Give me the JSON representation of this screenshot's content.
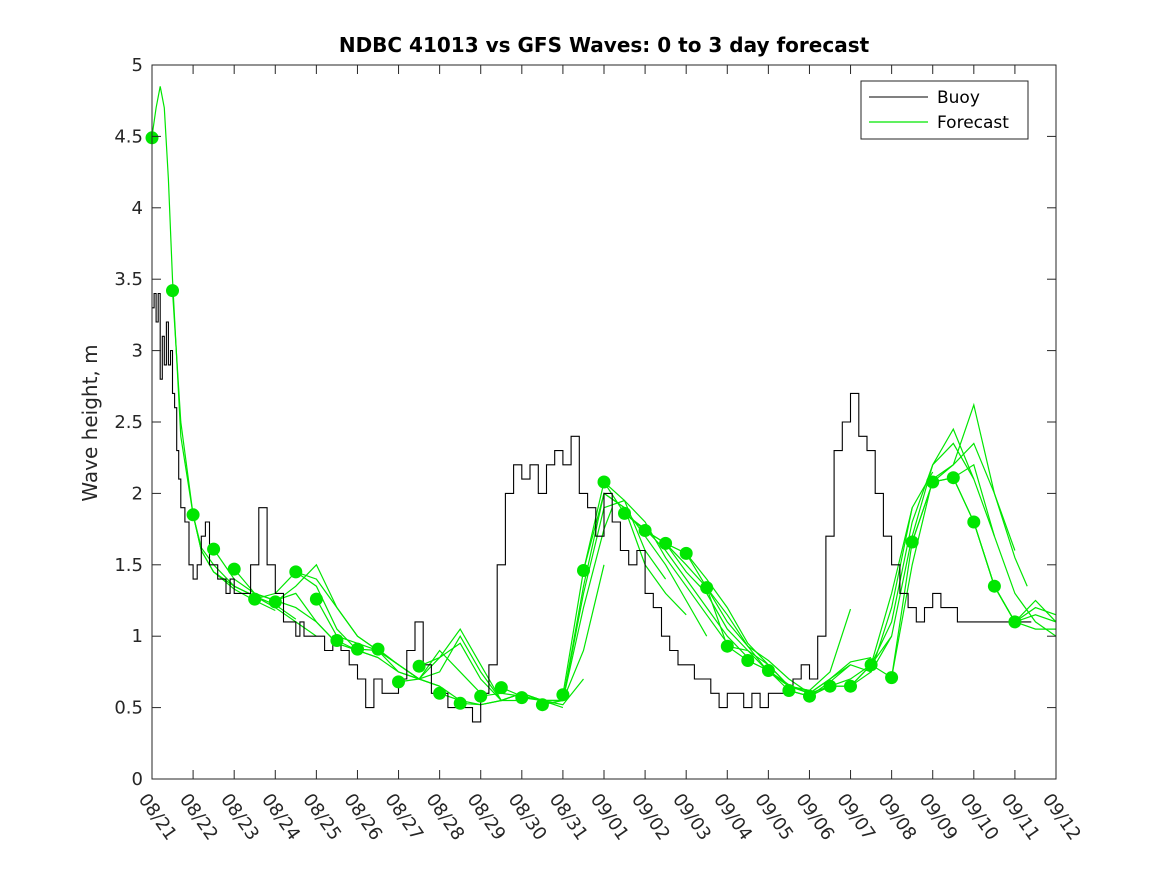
{
  "chart_data": {
    "type": "line",
    "title": "NDBC 41013 vs GFS Waves: 0 to 3 day forecast",
    "xlabel": "",
    "ylabel": "Wave height, m",
    "x_start_date": "08/21",
    "xlim": [
      0,
      22
    ],
    "ylim": [
      0,
      5
    ],
    "grid": false,
    "x_tick_labels": [
      "08/21",
      "08/22",
      "08/23",
      "08/24",
      "08/25",
      "08/26",
      "08/27",
      "08/28",
      "08/29",
      "08/30",
      "08/31",
      "09/01",
      "09/02",
      "09/03",
      "09/04",
      "09/05",
      "09/06",
      "09/07",
      "09/08",
      "09/09",
      "09/10",
      "09/11",
      "09/12"
    ],
    "y_ticks": [
      0,
      0.5,
      1,
      1.5,
      2,
      2.5,
      3,
      3.5,
      4,
      4.5,
      5
    ],
    "y_tick_labels": [
      "0",
      "0.5",
      "1",
      "1.5",
      "2",
      "2.5",
      "3",
      "3.5",
      "4",
      "4.5",
      "5"
    ],
    "legend": {
      "position": "top-right",
      "entries": [
        "Buoy",
        "Forecast"
      ]
    },
    "colors": {
      "buoy": "#000000",
      "forecast": "#00e600",
      "axes": "#262626"
    },
    "buoy": {
      "x": [
        0,
        0.05,
        0.1,
        0.15,
        0.2,
        0.25,
        0.3,
        0.35,
        0.4,
        0.45,
        0.5,
        0.55,
        0.6,
        0.65,
        0.7,
        0.8,
        0.9,
        1,
        1.1,
        1.2,
        1.3,
        1.4,
        1.5,
        1.6,
        1.7,
        1.8,
        1.9,
        2,
        2.2,
        2.4,
        2.6,
        2.8,
        3,
        3.2,
        3.4,
        3.5,
        3.6,
        3.7,
        3.8,
        3.9,
        4,
        4.2,
        4.4,
        4.6,
        4.8,
        5,
        5.2,
        5.4,
        5.6,
        5.8,
        6,
        6.2,
        6.4,
        6.6,
        6.8,
        7,
        7.2,
        7.4,
        7.6,
        7.8,
        8,
        8.2,
        8.4,
        8.6,
        8.8,
        9,
        9.2,
        9.4,
        9.6,
        9.8,
        10,
        10.2,
        10.4,
        10.6,
        10.8,
        11,
        11.2,
        11.4,
        11.6,
        11.8,
        12,
        12.2,
        12.4,
        12.6,
        12.8,
        13,
        13.2,
        13.4,
        13.6,
        13.8,
        14,
        14.2,
        14.4,
        14.6,
        14.8,
        15,
        15.2,
        15.4,
        15.6,
        15.8,
        16,
        16.2,
        16.4,
        16.6,
        16.8,
        17,
        17.2,
        17.4,
        17.6,
        17.8,
        18,
        18.2,
        18.4,
        18.6,
        18.8,
        19,
        19.2,
        19.4,
        19.6,
        19.8,
        20,
        20.2,
        20.4,
        20.6,
        20.8,
        21,
        21.2,
        21.4
      ],
      "values": [
        3.3,
        3.4,
        3.2,
        3.4,
        2.8,
        3.1,
        2.9,
        3.2,
        2.9,
        3.0,
        2.7,
        2.6,
        2.3,
        2.1,
        1.9,
        1.8,
        1.5,
        1.4,
        1.5,
        1.7,
        1.8,
        1.5,
        1.5,
        1.4,
        1.4,
        1.3,
        1.4,
        1.3,
        1.3,
        1.5,
        1.9,
        1.5,
        1.3,
        1.1,
        1.1,
        1.0,
        1.1,
        1.0,
        1.0,
        1.0,
        1.0,
        0.9,
        1.0,
        0.9,
        0.8,
        0.7,
        0.5,
        0.7,
        0.6,
        0.6,
        0.7,
        0.9,
        1.1,
        0.8,
        0.6,
        0.6,
        0.5,
        0.5,
        0.5,
        0.4,
        0.6,
        0.8,
        1.5,
        2.0,
        2.2,
        2.1,
        2.2,
        2.0,
        2.2,
        2.3,
        2.2,
        2.4,
        2.0,
        1.9,
        1.7,
        2.0,
        1.8,
        1.6,
        1.5,
        1.6,
        1.3,
        1.2,
        1.0,
        0.9,
        0.8,
        0.8,
        0.7,
        0.7,
        0.6,
        0.5,
        0.6,
        0.6,
        0.5,
        0.6,
        0.5,
        0.6,
        0.6,
        0.6,
        0.7,
        0.8,
        0.7,
        1.0,
        1.7,
        2.3,
        2.5,
        2.7,
        2.4,
        2.3,
        2.0,
        1.7,
        1.5,
        1.3,
        1.2,
        1.1,
        1.2,
        1.3,
        1.2,
        1.2,
        1.1,
        1.1,
        1.1,
        1.1,
        1.1,
        1.1,
        1.1,
        1.1,
        1.1,
        1.1
      ]
    },
    "forecast_runs": [
      {
        "x": [
          0,
          0.1,
          0.2,
          0.3,
          0.4,
          0.5,
          0.7,
          1,
          1.2,
          1.5,
          2,
          2.5,
          3
        ],
        "values": [
          4.5,
          4.7,
          4.85,
          4.7,
          4.2,
          3.5,
          2.4,
          1.85,
          1.6,
          1.45,
          1.33,
          1.25,
          1.18
        ]
      },
      {
        "x": [
          0.5,
          0.7,
          1,
          1.2,
          1.5,
          2,
          2.5,
          3,
          3.5
        ],
        "values": [
          3.42,
          2.5,
          1.85,
          1.62,
          1.5,
          1.35,
          1.28,
          1.22,
          1.12
        ]
      },
      {
        "x": [
          1,
          1.2,
          1.5,
          2,
          2.5,
          3,
          3.5,
          4
        ],
        "values": [
          1.85,
          1.6,
          1.45,
          1.35,
          1.28,
          1.2,
          1.1,
          1.0
        ]
      },
      {
        "x": [
          1.5,
          2,
          2.5,
          3,
          3.5,
          4,
          4.5
        ],
        "values": [
          1.61,
          1.4,
          1.3,
          1.25,
          1.2,
          1.1,
          0.95
        ]
      },
      {
        "x": [
          2,
          2.5,
          3,
          3.5,
          4,
          4.5,
          5
        ],
        "values": [
          1.47,
          1.3,
          1.25,
          1.3,
          1.1,
          0.95,
          0.9
        ]
      },
      {
        "x": [
          2.5,
          3,
          3.5,
          4,
          4.5,
          5,
          5.5
        ],
        "values": [
          1.26,
          1.3,
          1.45,
          1.35,
          1.05,
          0.9,
          0.85
        ]
      },
      {
        "x": [
          3,
          3.5,
          4,
          4.5,
          5,
          5.5,
          6
        ],
        "values": [
          1.24,
          1.35,
          1.5,
          1.2,
          1.0,
          0.9,
          0.8
        ]
      },
      {
        "x": [
          3.5,
          4,
          4.5,
          5,
          5.5,
          6,
          6.5
        ],
        "values": [
          1.45,
          1.4,
          1.2,
          1.0,
          0.9,
          0.8,
          0.7
        ]
      },
      {
        "x": [
          4,
          4.5,
          5,
          5.5,
          6,
          6.5,
          7
        ],
        "values": [
          1.26,
          1.0,
          0.95,
          0.9,
          0.75,
          0.7,
          0.65
        ]
      },
      {
        "x": [
          4.5,
          5,
          5.5,
          6,
          6.5,
          7,
          7.5
        ],
        "values": [
          0.97,
          0.9,
          0.85,
          0.75,
          0.7,
          0.65,
          0.55
        ]
      },
      {
        "x": [
          5,
          5.5,
          6,
          6.5,
          7,
          7.5,
          8
        ],
        "values": [
          0.91,
          0.9,
          0.8,
          0.7,
          0.9,
          0.75,
          0.6
        ]
      },
      {
        "x": [
          5.5,
          6,
          6.5,
          7,
          7.5,
          8,
          8.5
        ],
        "values": [
          0.91,
          0.8,
          0.7,
          0.85,
          1.05,
          0.8,
          0.55
        ]
      },
      {
        "x": [
          6,
          6.5,
          7,
          7.5,
          8,
          8.5,
          9
        ],
        "values": [
          0.68,
          0.7,
          0.75,
          1.0,
          0.75,
          0.55,
          0.55
        ]
      },
      {
        "x": [
          6.5,
          7,
          7.5,
          8,
          8.5,
          9,
          9.5
        ],
        "values": [
          0.79,
          0.85,
          0.95,
          0.7,
          0.55,
          0.6,
          0.55
        ]
      },
      {
        "x": [
          7,
          7.5,
          8,
          8.5,
          9,
          9.5,
          10
        ],
        "values": [
          0.6,
          0.55,
          0.52,
          0.55,
          0.6,
          0.55,
          0.5
        ]
      },
      {
        "x": [
          7.5,
          8,
          8.5,
          9,
          9.5,
          10,
          10.5
        ],
        "values": [
          0.53,
          0.52,
          0.55,
          0.6,
          0.55,
          0.52,
          0.7
        ]
      },
      {
        "x": [
          8,
          8.5,
          9,
          9.5,
          10,
          10.5,
          11
        ],
        "values": [
          0.58,
          0.6,
          0.58,
          0.55,
          0.55,
          0.9,
          1.5
        ]
      },
      {
        "x": [
          8.5,
          9,
          9.5,
          10,
          10.5,
          11,
          11.2
        ],
        "values": [
          0.64,
          0.58,
          0.55,
          0.55,
          1.2,
          1.75,
          1.9
        ]
      },
      {
        "x": [
          9,
          9.5,
          10,
          10.5,
          11,
          11.5,
          12,
          12.5
        ],
        "values": [
          0.57,
          0.55,
          0.55,
          1.3,
          1.9,
          1.95,
          1.6,
          1.4
        ]
      },
      {
        "x": [
          9.5,
          10,
          10.5,
          11,
          11.5,
          12,
          12.5,
          13
        ],
        "values": [
          0.52,
          0.55,
          1.35,
          2.0,
          1.9,
          1.5,
          1.3,
          1.15
        ]
      },
      {
        "x": [
          10,
          10.5,
          11,
          11.5,
          12,
          12.5,
          13,
          13.5
        ],
        "values": [
          0.59,
          1.46,
          2.0,
          1.9,
          1.7,
          1.5,
          1.25,
          1.0
        ]
      },
      {
        "x": [
          10.5,
          11,
          11.5,
          12,
          12.5,
          13,
          13.5,
          14
        ],
        "values": [
          1.46,
          2.08,
          1.95,
          1.8,
          1.55,
          1.35,
          1.15,
          0.95
        ]
      },
      {
        "x": [
          11,
          11.5,
          12,
          12.5,
          13,
          13.5,
          14,
          14.5
        ],
        "values": [
          2.08,
          1.86,
          1.75,
          1.6,
          1.4,
          1.2,
          1.0,
          0.85
        ]
      },
      {
        "x": [
          11.5,
          12,
          12.5,
          13,
          13.5,
          14,
          14.5,
          15
        ],
        "values": [
          1.86,
          1.74,
          1.65,
          1.45,
          1.3,
          1.05,
          0.9,
          0.75
        ]
      },
      {
        "x": [
          12,
          12.5,
          13,
          13.5,
          14,
          14.5,
          15,
          15.5
        ],
        "values": [
          1.74,
          1.65,
          1.5,
          1.34,
          1.1,
          0.93,
          0.75,
          0.65
        ]
      },
      {
        "x": [
          12.5,
          13,
          13.5,
          14,
          14.5,
          15,
          15.5,
          16
        ],
        "values": [
          1.65,
          1.58,
          1.4,
          1.2,
          0.95,
          0.8,
          0.65,
          0.62
        ]
      },
      {
        "x": [
          13,
          13.5,
          14,
          14.5,
          15,
          15.5,
          16,
          16.5
        ],
        "values": [
          1.58,
          1.34,
          1.15,
          0.93,
          0.83,
          0.7,
          0.6,
          0.65
        ]
      },
      {
        "x": [
          13.5,
          14,
          14.5,
          15,
          15.5,
          16,
          16.5,
          17
        ],
        "values": [
          1.34,
          0.93,
          0.9,
          0.8,
          0.65,
          0.6,
          0.7,
          0.8
        ]
      },
      {
        "x": [
          14,
          14.5,
          15,
          15.5,
          16,
          16.5,
          17
        ],
        "values": [
          0.93,
          0.83,
          0.76,
          0.65,
          0.62,
          0.75,
          1.19
        ]
      },
      {
        "x": [
          14.5,
          15,
          15.5,
          16,
          16.5,
          17,
          17.5
        ],
        "values": [
          0.83,
          0.76,
          0.66,
          0.6,
          0.7,
          0.82,
          0.85
        ]
      },
      {
        "x": [
          15,
          15.5,
          16,
          16.5,
          17,
          17.5,
          18
        ],
        "values": [
          0.76,
          0.62,
          0.58,
          0.68,
          0.8,
          0.75,
          1.0
        ]
      },
      {
        "x": [
          15.5,
          16,
          16.5,
          17,
          17.5,
          18,
          18.5
        ],
        "values": [
          0.62,
          0.58,
          0.65,
          0.7,
          0.8,
          1.3,
          1.9
        ]
      },
      {
        "x": [
          16,
          16.5,
          17,
          17.5,
          18,
          18.5,
          19
        ],
        "values": [
          0.58,
          0.65,
          0.65,
          0.75,
          1.2,
          1.9,
          2.15
        ]
      },
      {
        "x": [
          16.5,
          17,
          17.5,
          18,
          18.5,
          19,
          19.5,
          20
        ],
        "values": [
          0.65,
          0.65,
          0.8,
          1.1,
          1.8,
          2.2,
          2.35,
          2.1
        ]
      },
      {
        "x": [
          17,
          17.5,
          18,
          18.5,
          19,
          19.5,
          20,
          20.5
        ],
        "values": [
          0.65,
          0.8,
          1.0,
          1.7,
          2.2,
          2.45,
          2.1,
          1.7
        ]
      },
      {
        "x": [
          17.5,
          18,
          18.5,
          19,
          19.5,
          20,
          20.5,
          21
        ],
        "values": [
          0.8,
          0.71,
          1.5,
          2.1,
          2.2,
          2.62,
          2.0,
          1.6
        ]
      },
      {
        "x": [
          18,
          18.5,
          19,
          19.5,
          20,
          20.5,
          21,
          21.3
        ],
        "values": [
          0.71,
          1.66,
          2.08,
          2.2,
          2.35,
          2.0,
          1.55,
          1.35
        ]
      },
      {
        "x": [
          18.5,
          19,
          19.5,
          20,
          20.5,
          21,
          21.5,
          22
        ],
        "values": [
          1.66,
          2.08,
          2.11,
          2.2,
          1.7,
          1.3,
          1.1,
          1.0
        ]
      },
      {
        "x": [
          19,
          19.5,
          20,
          20.5,
          21,
          21.5,
          22
        ],
        "values": [
          2.08,
          2.11,
          1.8,
          1.35,
          1.1,
          1.05,
          1.05
        ]
      },
      {
        "x": [
          19.5,
          20,
          20.5,
          21,
          21.5,
          22
        ],
        "values": [
          2.11,
          1.8,
          1.35,
          1.1,
          1.15,
          1.1
        ]
      },
      {
        "x": [
          20,
          20.5,
          21,
          21.5,
          22
        ],
        "values": [
          1.8,
          1.35,
          1.1,
          1.2,
          1.15
        ]
      },
      {
        "x": [
          20.5,
          21,
          21.5,
          22
        ],
        "values": [
          1.35,
          1.1,
          1.25,
          1.1
        ]
      }
    ],
    "forecast_analysis_points": {
      "x": [
        0,
        0.5,
        1,
        1.5,
        2,
        2.5,
        3,
        3.5,
        4,
        4.5,
        5,
        5.5,
        6,
        6.5,
        7,
        7.5,
        8,
        8.5,
        9,
        9.5,
        10,
        10.5,
        11,
        11.5,
        12,
        12.5,
        13,
        13.5,
        14,
        14.5,
        15,
        15.5,
        16,
        16.5,
        17,
        17.5,
        18,
        18.5,
        19,
        19.5,
        20,
        20.5,
        21
      ],
      "values": [
        4.49,
        3.42,
        1.85,
        1.61,
        1.47,
        1.26,
        1.24,
        1.45,
        1.26,
        0.97,
        0.91,
        0.91,
        0.68,
        0.79,
        0.6,
        0.53,
        0.58,
        0.64,
        0.57,
        0.52,
        0.59,
        1.46,
        2.08,
        1.86,
        1.74,
        1.65,
        1.58,
        1.34,
        0.93,
        0.83,
        0.76,
        0.62,
        0.58,
        0.65,
        0.65,
        0.8,
        0.71,
        1.66,
        2.08,
        2.11,
        1.8,
        1.35,
        1.1
      ]
    }
  }
}
